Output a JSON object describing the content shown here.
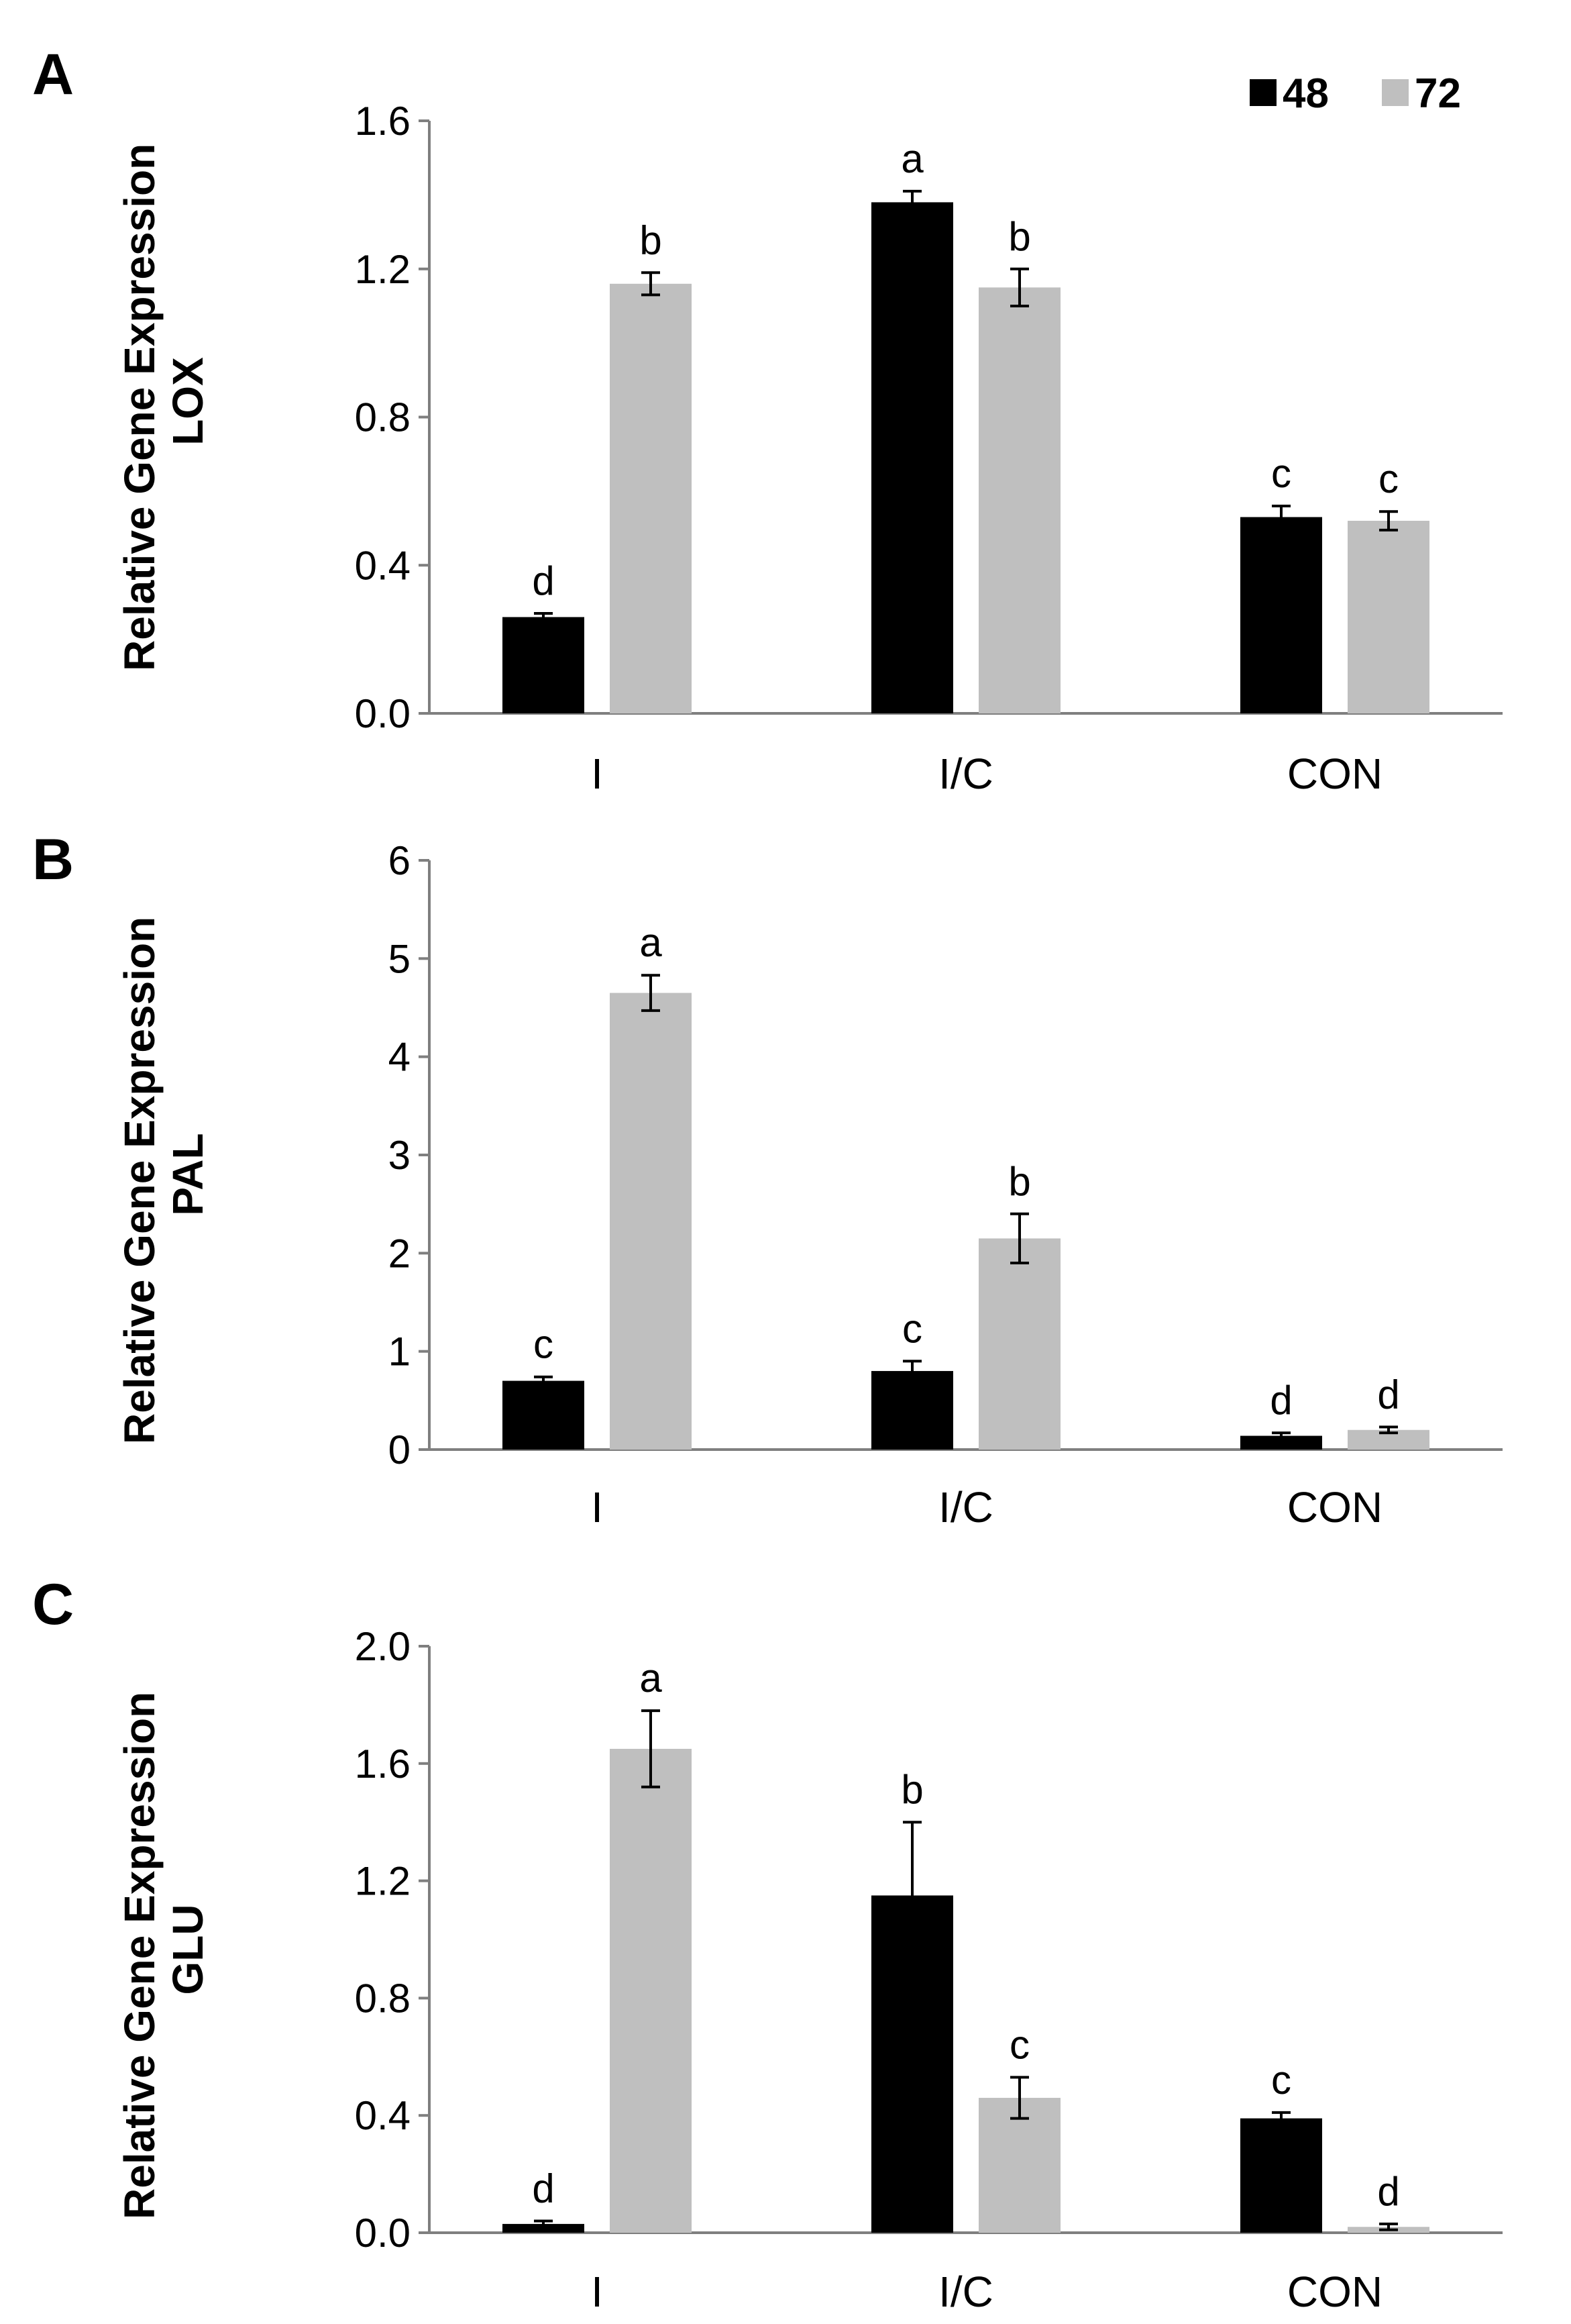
{
  "legend": {
    "entries": [
      {
        "label": "48",
        "color": "#000000"
      },
      {
        "label": "72",
        "color": "#bfbfbf"
      }
    ],
    "placement": "top-right"
  },
  "chart_data": [
    {
      "panel": "A",
      "type": "bar",
      "ylabel_line1": "Relative Gene Expression",
      "ylabel_line2": "LOX",
      "categories": [
        "I",
        "I/C",
        "CON"
      ],
      "ylim": [
        0,
        1.6
      ],
      "yticks": [
        "0.0",
        "0.4",
        "0.8",
        "1.2",
        "1.6"
      ],
      "ytick_values": [
        0,
        0.4,
        0.8,
        1.2,
        1.6
      ],
      "series": [
        {
          "name": "48",
          "color": "#000000",
          "values": [
            0.26,
            1.38,
            0.53
          ],
          "errors": [
            0.01,
            0.03,
            0.03
          ],
          "letters": [
            "d",
            "a",
            "c"
          ]
        },
        {
          "name": "72",
          "color": "#bfbfbf",
          "values": [
            1.16,
            1.15,
            0.52
          ],
          "errors": [
            0.03,
            0.05,
            0.025
          ],
          "letters": [
            "b",
            "b",
            "c"
          ]
        }
      ]
    },
    {
      "panel": "B",
      "type": "bar",
      "ylabel_line1": "Relative Gene Expression",
      "ylabel_line2": "PAL",
      "categories": [
        "I",
        "I/C",
        "CON"
      ],
      "ylim": [
        0,
        6
      ],
      "yticks": [
        "0",
        "1",
        "2",
        "3",
        "4",
        "5",
        "6"
      ],
      "ytick_values": [
        0,
        1,
        2,
        3,
        4,
        5,
        6
      ],
      "series": [
        {
          "name": "48",
          "color": "#000000",
          "values": [
            0.7,
            0.8,
            0.14
          ],
          "errors": [
            0.04,
            0.1,
            0.03
          ],
          "letters": [
            "c",
            "c",
            "d"
          ]
        },
        {
          "name": "72",
          "color": "#bfbfbf",
          "values": [
            4.65,
            2.15,
            0.2
          ],
          "errors": [
            0.18,
            0.25,
            0.03
          ],
          "letters": [
            "a",
            "b",
            "d"
          ]
        }
      ]
    },
    {
      "panel": "C",
      "type": "bar",
      "ylabel_line1": "Relative Gene Expression",
      "ylabel_line2": "GLU",
      "categories": [
        "I",
        "I/C",
        "CON"
      ],
      "ylim": [
        0,
        2.0
      ],
      "yticks": [
        "0.0",
        "0.4",
        "0.8",
        "1.2",
        "1.6",
        "2.0"
      ],
      "ytick_values": [
        0,
        0.4,
        0.8,
        1.2,
        1.6,
        2.0
      ],
      "series": [
        {
          "name": "48",
          "color": "#000000",
          "values": [
            0.03,
            1.15,
            0.39
          ],
          "errors": [
            0.01,
            0.25,
            0.02
          ],
          "letters": [
            "d",
            "b",
            "c"
          ]
        },
        {
          "name": "72",
          "color": "#bfbfbf",
          "values": [
            1.65,
            0.46,
            0.02
          ],
          "errors": [
            0.13,
            0.07,
            0.01
          ],
          "letters": [
            "a",
            "c",
            "d"
          ]
        }
      ]
    }
  ]
}
